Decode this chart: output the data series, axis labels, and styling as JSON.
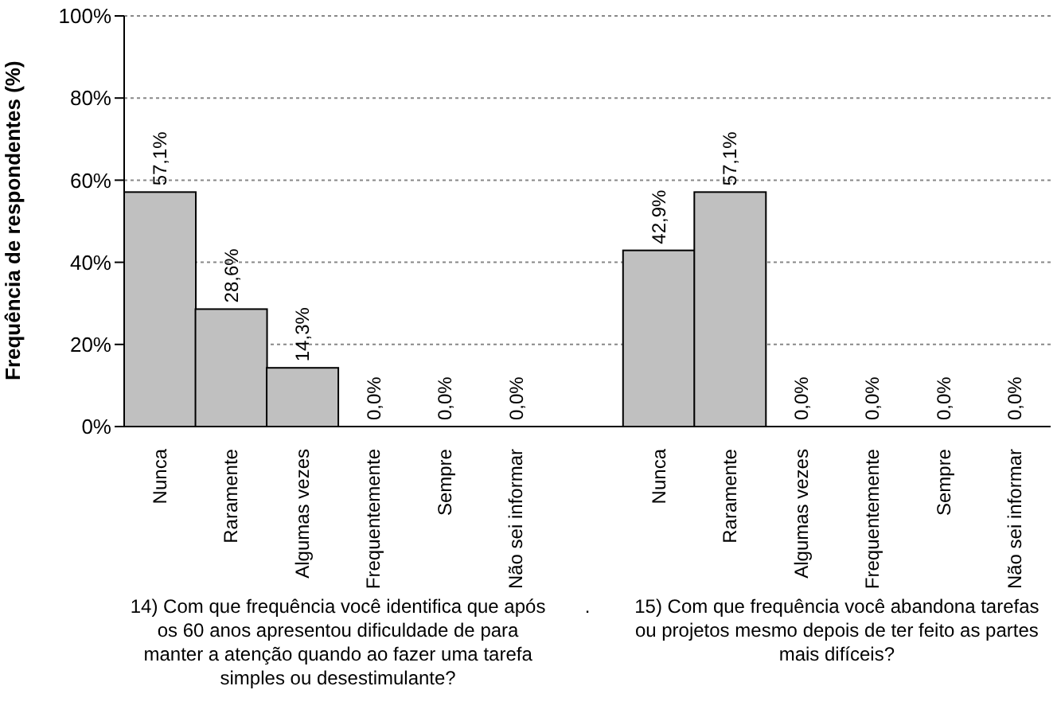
{
  "chart_data": {
    "type": "bar",
    "ylabel": "Frequência de respondentes (%)",
    "categories": [
      "Nunca",
      "Raramente",
      "Algumas vezes",
      "Frequentemente",
      "Sempre",
      "Não sei informar",
      null,
      "Nunca",
      "Raramente",
      "Algumas vezes",
      "Frequentemente",
      "Sempre",
      "Não sei informar"
    ],
    "values": [
      57.1,
      28.6,
      14.3,
      0,
      0,
      0,
      null,
      42.9,
      57.1,
      0,
      0,
      0,
      0
    ],
    "value_labels": [
      "57,1%",
      "28,6%",
      "14,3%",
      "0,0%",
      "0,0%",
      "0,0%",
      null,
      "42,9%",
      "57,1%",
      "0,0%",
      "0,0%",
      "0,0%",
      "0,0%"
    ],
    "color": "#c0c0c0",
    "ylim": [
      0,
      100
    ],
    "yticks": [
      {
        "value": 0,
        "label": "0%"
      },
      {
        "value": 20,
        "label": "20%"
      },
      {
        "value": 40,
        "label": "40%"
      },
      {
        "value": 60,
        "label": "60%"
      },
      {
        "value": 80,
        "label": "80%"
      },
      {
        "value": 100,
        "label": "100%"
      }
    ],
    "grid": "y",
    "annotations": [
      "14) Com que frequência você identifica que após os 60 anos apresentou dificuldade de para manter a atenção quando ao fazer uma tarefa simples ou desestimulante?",
      ".",
      "15) Com que frequência você abandona tarefas ou projetos mesmo depois de ter feito as partes mais difíceis?"
    ]
  }
}
